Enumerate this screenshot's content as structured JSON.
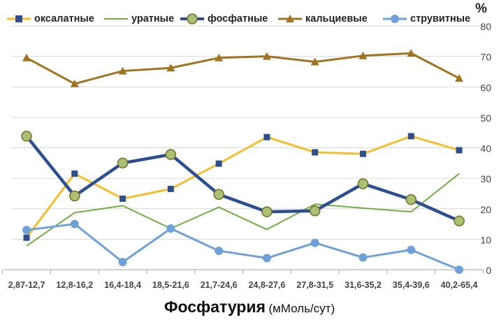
{
  "chart_data": {
    "type": "line",
    "categories": [
      "2,87-12,7",
      "12,8-16,2",
      "16,4-18,4",
      "18,5-21,6",
      "21,7-24,6",
      "24,8-27,6",
      "27,8-31,5",
      "31,6-35,2",
      "35,4-39,6",
      "40,2-65,4"
    ],
    "series": [
      {
        "name": "оксалатные",
        "color": "#f5be2e",
        "marker": "square",
        "marker_color": "#2f4f8a",
        "values": [
          10.5,
          31.5,
          23.3,
          26.5,
          34.8,
          43.5,
          38.5,
          38,
          43.8,
          39.2
        ]
      },
      {
        "name": "уратные",
        "color": "#6fae45",
        "marker": "none",
        "values": [
          7.8,
          18.7,
          21,
          13.5,
          20.5,
          13.2,
          21.5,
          20.2,
          19,
          31.5
        ]
      },
      {
        "name": "фосфатные",
        "color": "#2e4f8f",
        "marker": "circle",
        "marker_color": "#a9c173",
        "values": [
          43.8,
          24.2,
          35,
          37.8,
          24.7,
          19,
          19.3,
          28.2,
          23,
          16
        ]
      },
      {
        "name": "кальциевые",
        "color": "#a07320",
        "marker": "triangle",
        "marker_color": "#a07320",
        "values": [
          69.5,
          61,
          65.2,
          66.2,
          69.5,
          70,
          68.2,
          70.2,
          71,
          62.8
        ]
      },
      {
        "name": "струвитные",
        "color": "#6fa1d6",
        "marker": "circle",
        "marker_color": "#6fa1d6",
        "values": [
          13,
          15,
          2.5,
          13.5,
          6.2,
          3.8,
          8.8,
          4,
          6.5,
          0
        ]
      }
    ],
    "y_ticks": [
      "0",
      "10",
      "20",
      "30",
      "40",
      "50",
      "60",
      "70",
      "80"
    ],
    "ylim": [
      0,
      80
    ],
    "y_unit": "%",
    "xlabel": "Фосфатурия",
    "xlabel_unit": "(мМоль/сут)",
    "grid": "horizontal",
    "legend_position": "top"
  }
}
